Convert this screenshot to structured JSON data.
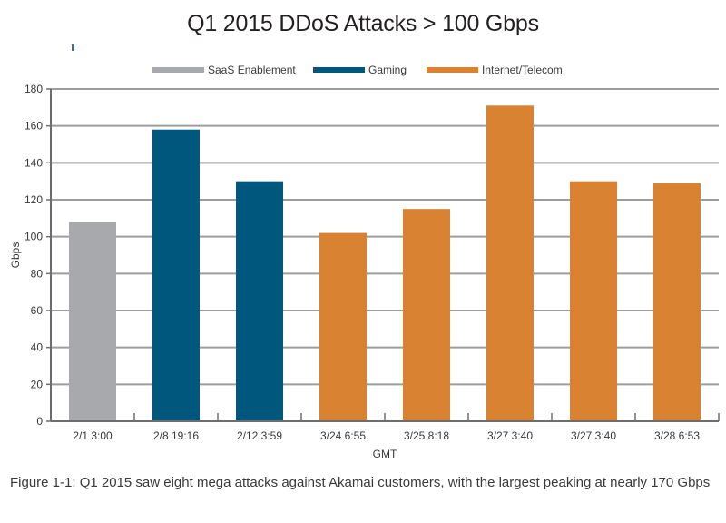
{
  "chart_data": {
    "type": "bar",
    "title": "Q1 2015 DDoS Attacks > 100 Gbps",
    "xlabel": "GMT",
    "ylabel": "Gbps",
    "ylim": [
      0,
      180
    ],
    "yticks": [
      0,
      20,
      40,
      60,
      80,
      100,
      120,
      140,
      160,
      180
    ],
    "grid": true,
    "legend_position": "top-center",
    "categories": [
      "2/1 3:00",
      "2/8 19:16",
      "2/12 3:59",
      "3/24 6:55",
      "3/25 8:18",
      "3/27 3:40",
      "3/27 3:40",
      "3/28 6:53"
    ],
    "values": [
      108,
      158,
      130,
      102,
      115,
      171,
      130,
      129
    ],
    "bar_series": [
      "SaaS Enablement",
      "Gaming",
      "Gaming",
      "Internet/Telecom",
      "Internet/Telecom",
      "Internet/Telecom",
      "Internet/Telecom",
      "Internet/Telecom"
    ],
    "series": [
      {
        "name": "SaaS Enablement",
        "color": "#a7a9ac"
      },
      {
        "name": "Gaming",
        "color": "#00577d"
      },
      {
        "name": "Internet/Telecom",
        "color": "#d98232"
      }
    ]
  },
  "caption": "Figure 1-1: Q1 2015 saw eight mega attacks against Akamai customers, with the largest peaking at nearly 170 Gbps",
  "colors": {
    "grid": "#9d9d9d",
    "axis": "#6d6d6d",
    "text": "#3a3a3a"
  }
}
